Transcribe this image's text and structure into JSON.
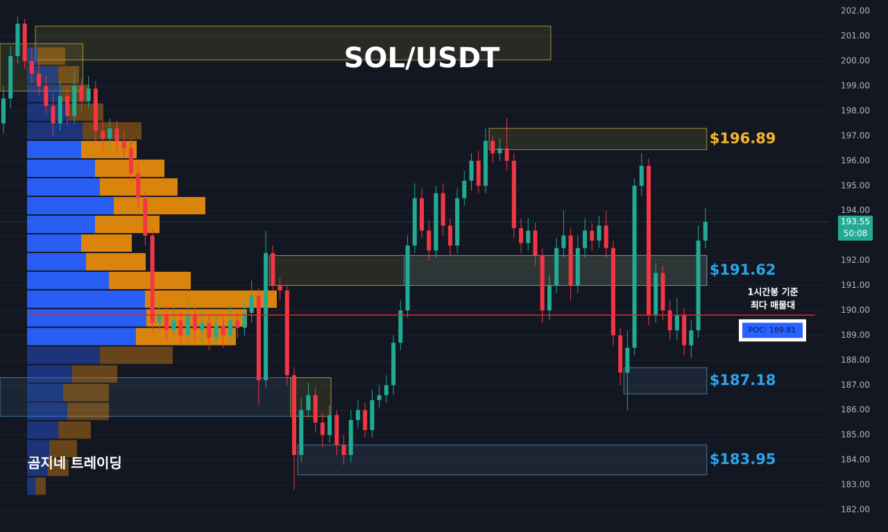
{
  "chart_data": {
    "type": "candlestick",
    "title": "SOL/USDT",
    "watermark": "곰지네 트레이딩",
    "ylim": [
      181.11,
      202.45
    ],
    "yticks": [
      {
        "value": 202,
        "label": "202.00"
      },
      {
        "value": 201,
        "label": "201.00"
      },
      {
        "value": 200,
        "label": "200.00"
      },
      {
        "value": 199,
        "label": "199.00"
      },
      {
        "value": 198,
        "label": "198.00"
      },
      {
        "value": 197,
        "label": "197.00"
      },
      {
        "value": 196,
        "label": "196.00"
      },
      {
        "value": 195,
        "label": "195.00"
      },
      {
        "value": 194,
        "label": "194.00"
      },
      {
        "value": 193,
        "label": "193.00"
      },
      {
        "value": 192,
        "label": "192.00"
      },
      {
        "value": 191,
        "label": "191.00"
      },
      {
        "value": 190,
        "label": "190.00"
      },
      {
        "value": 189,
        "label": "189.00"
      },
      {
        "value": 188,
        "label": "188.00"
      },
      {
        "value": 187,
        "label": "187.00"
      },
      {
        "value": 186,
        "label": "186.00"
      },
      {
        "value": 185,
        "label": "185.00"
      },
      {
        "value": 184,
        "label": "184.00"
      },
      {
        "value": 183,
        "label": "183.00"
      },
      {
        "value": 182,
        "label": "182.00"
      }
    ],
    "grid": true,
    "up_color": "#22ab94",
    "down_color": "#f23645",
    "open": [
      197.5,
      198.5,
      200.2,
      201.5,
      200.0,
      199.5,
      199.0,
      198.2,
      197.5,
      198.6,
      197.8,
      199.0,
      198.4,
      198.9,
      197.2,
      196.9,
      197.3,
      196.8,
      196.5,
      195.5,
      194.5,
      193.0,
      189.5,
      189.8,
      189.2,
      189.6,
      189.0,
      189.8,
      189.2,
      189.5,
      188.9,
      189.4,
      189.0,
      189.6,
      189.3,
      189.9,
      190.6,
      187.2,
      192.3,
      191.0,
      190.8,
      187.4,
      184.2,
      186.0,
      186.6,
      185.5,
      185.0,
      185.8,
      184.6,
      184.2,
      185.6,
      186.0,
      185.2,
      186.4,
      186.6,
      187.0,
      188.7,
      190.0,
      192.6,
      194.5,
      193.2,
      192.4,
      194.7,
      193.4,
      192.6,
      194.5,
      195.2,
      196.0,
      195.0,
      196.8,
      196.3,
      196.5,
      196.0,
      193.3,
      192.7,
      193.2,
      192.2,
      190.0,
      191.0,
      192.5,
      193.0,
      191.0,
      192.5,
      193.2,
      192.8,
      193.4,
      192.5,
      189.0,
      187.5,
      188.5,
      195.0,
      195.8,
      189.8,
      191.5,
      190.0,
      189.2,
      189.8,
      188.6,
      189.2,
      192.8
    ],
    "high": [
      199.0,
      200.6,
      201.8,
      201.7,
      200.5,
      200.0,
      199.4,
      198.7,
      199.2,
      199.0,
      199.6,
      199.3,
      199.4,
      199.2,
      197.6,
      197.7,
      197.6,
      197.2,
      196.9,
      195.9,
      194.8,
      193.3,
      190.4,
      190.2,
      190.1,
      190.0,
      190.4,
      190.1,
      190.0,
      189.8,
      189.9,
      189.7,
      190.2,
      189.9,
      190.4,
      191.2,
      190.9,
      193.2,
      192.6,
      191.3,
      191.0,
      187.7,
      186.5,
      187.1,
      186.9,
      185.9,
      186.2,
      186.0,
      185.0,
      186.0,
      186.4,
      186.3,
      186.8,
      187.0,
      187.4,
      189.0,
      190.4,
      193.0,
      195.1,
      194.9,
      193.6,
      195.0,
      195.1,
      193.7,
      194.9,
      195.6,
      196.3,
      196.4,
      197.3,
      197.0,
      196.9,
      197.7,
      196.3,
      193.7,
      193.7,
      193.5,
      192.5,
      191.4,
      192.9,
      194.0,
      193.3,
      193.0,
      193.7,
      193.5,
      193.8,
      194.0,
      192.8,
      189.3,
      189.2,
      195.3,
      196.3,
      196.1,
      191.9,
      191.8,
      190.4,
      190.5,
      190.1,
      189.6,
      193.4,
      194.1
    ],
    "low": [
      197.1,
      198.1,
      199.9,
      199.7,
      199.1,
      198.6,
      197.9,
      197.0,
      197.2,
      197.4,
      197.5,
      198.0,
      198.1,
      196.8,
      196.4,
      196.5,
      196.4,
      196.1,
      195.1,
      194.1,
      192.6,
      189.1,
      189.2,
      188.8,
      188.9,
      188.6,
      188.7,
      188.8,
      188.7,
      188.4,
      188.6,
      188.5,
      188.7,
      188.9,
      189.0,
      189.5,
      186.2,
      186.9,
      190.7,
      190.4,
      187.0,
      182.8,
      183.9,
      185.7,
      185.1,
      184.5,
      184.7,
      184.2,
      183.8,
      183.9,
      185.3,
      184.9,
      184.9,
      186.1,
      186.3,
      186.6,
      188.4,
      189.7,
      192.3,
      192.9,
      192.0,
      192.1,
      193.0,
      192.2,
      192.3,
      194.2,
      194.8,
      194.7,
      194.7,
      195.9,
      196.0,
      195.6,
      192.9,
      192.3,
      192.4,
      191.8,
      189.5,
      189.6,
      190.7,
      192.1,
      190.4,
      190.7,
      192.1,
      192.4,
      192.5,
      192.1,
      188.6,
      187.0,
      186.0,
      188.2,
      194.6,
      189.4,
      189.5,
      189.6,
      188.8,
      188.8,
      188.2,
      188.1,
      188.9,
      192.5
    ],
    "close": [
      198.5,
      200.2,
      201.5,
      200.0,
      199.5,
      199.0,
      198.2,
      197.5,
      198.6,
      197.8,
      199.0,
      198.4,
      198.9,
      197.2,
      196.9,
      197.3,
      196.8,
      196.5,
      195.5,
      194.5,
      193.0,
      189.5,
      189.8,
      189.2,
      189.6,
      189.0,
      189.8,
      189.2,
      189.5,
      188.9,
      189.4,
      189.0,
      189.6,
      189.3,
      189.9,
      190.6,
      187.2,
      192.3,
      191.0,
      190.8,
      187.4,
      184.2,
      186.0,
      186.6,
      185.5,
      185.0,
      185.8,
      184.6,
      184.2,
      185.6,
      186.0,
      185.2,
      186.4,
      186.6,
      187.0,
      188.7,
      190.0,
      192.6,
      194.5,
      193.2,
      192.4,
      194.7,
      193.4,
      192.6,
      194.5,
      195.2,
      196.0,
      195.0,
      196.8,
      196.3,
      196.5,
      196.0,
      193.3,
      192.7,
      193.2,
      192.2,
      190.0,
      191.0,
      192.5,
      193.0,
      191.0,
      192.5,
      193.2,
      192.8,
      193.4,
      192.5,
      189.0,
      187.5,
      188.5,
      195.0,
      195.8,
      189.8,
      191.5,
      190.0,
      189.2,
      189.8,
      188.6,
      189.2,
      192.8,
      193.55
    ],
    "zones": [
      {
        "top": 201.4,
        "bottom": 200.05,
        "start": 5,
        "end": 77,
        "color": "#c9b23a"
      },
      {
        "top": 200.7,
        "bottom": 198.8,
        "start": 0,
        "end": 11,
        "color": "#c9b23a"
      },
      {
        "top": 197.3,
        "bottom": 196.45,
        "start": 69,
        "end": 99,
        "color": "#c9b23a",
        "label": "$196.89",
        "label_color": "#f5b82e"
      },
      {
        "top": 192.2,
        "bottom": 191.0,
        "start": 38,
        "end": 99,
        "color": "#c9b23a"
      },
      {
        "top": 192.2,
        "bottom": 191.0,
        "start": 57,
        "end": 99,
        "color": "#5a8fb8",
        "label": "$191.62",
        "label_color": "#2ea3e8"
      },
      {
        "top": 187.7,
        "bottom": 186.65,
        "start": 88,
        "end": 99,
        "color": "#5a8fb8",
        "label": "$187.18",
        "label_color": "#2ea3e8"
      },
      {
        "top": 184.6,
        "bottom": 183.4,
        "start": 42,
        "end": 99,
        "color": "#5a8fb8",
        "label": "$183.95",
        "label_color": "#2ea3e8"
      },
      {
        "top": 187.3,
        "bottom": 185.75,
        "start": 0,
        "end": 41,
        "color": "#5a8fb8"
      },
      {
        "top": 187.3,
        "bottom": 185.75,
        "start": 41,
        "end": 46,
        "color": "#c9b23a"
      }
    ],
    "volume_profile": {
      "levels": [
        200.2,
        199.45,
        198.7,
        197.95,
        197.2,
        196.45,
        195.7,
        194.95,
        194.2,
        193.45,
        192.7,
        191.95,
        191.2,
        190.45,
        189.7,
        188.95,
        188.2,
        187.45,
        186.7,
        185.95,
        185.2,
        184.45,
        183.7,
        182.95
      ],
      "buy": [
        15,
        45,
        50,
        60,
        80,
        78,
        98,
        105,
        125,
        98,
        78,
        85,
        118,
        170,
        172,
        157,
        105,
        65,
        52,
        58,
        45,
        32,
        30,
        12
      ],
      "sell": [
        40,
        30,
        40,
        50,
        85,
        80,
        100,
        112,
        132,
        93,
        73,
        86,
        118,
        190,
        145,
        144,
        105,
        65,
        66,
        60,
        47,
        40,
        30,
        15
      ],
      "value_area": [
        188.6,
        196.8
      ],
      "buy_color": "#2962ff",
      "sell_color": "#e68a0c"
    },
    "poc": {
      "value": 189.81,
      "label": "POC: 189.81",
      "color": "#e3252b"
    },
    "poc_note": [
      "1시간봉 기준",
      "최다 매물대"
    ],
    "last_price": 193.55,
    "countdown": "50:08"
  }
}
